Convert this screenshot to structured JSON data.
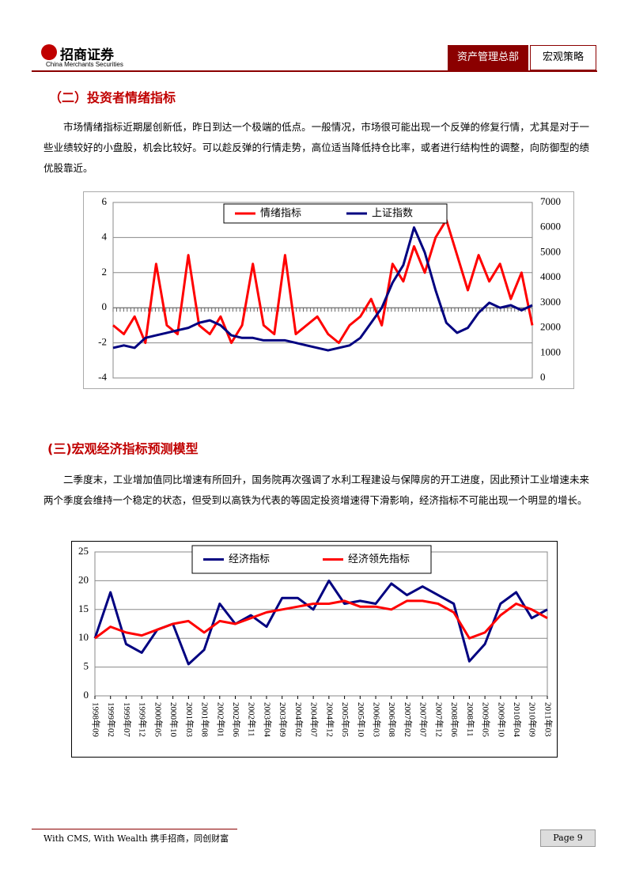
{
  "header": {
    "logo_cn": "招商证券",
    "logo_en": "China Merchants Securities",
    "tab1": "资产管理总部",
    "tab2": "宏观策略"
  },
  "sections": [
    {
      "heading": "（二）投资者情绪指标",
      "paragraph": "市场情绪指标近期屡创新低，昨日到达一个极端的低点。一般情况，市场很可能出现一个反弹的修复行情，尤其是对于一些业绩较好的小盘股，机会比较好。可以趁反弹的行情走势，高位适当降低持仓比率，或者进行结构性的调整，向防御型的绩优股靠近。"
    },
    {
      "heading": "(三)宏观经济指标预测模型",
      "paragraph": "二季度末，工业增加值同比增速有所回升，国务院再次强调了水利工程建设与保障房的开工进度，因此预计工业增速未来两个季度会维持一个稳定的状态，但受到以高铁为代表的等固定投资增速得下滑影响，经济指标不可能出现一个明显的增长。"
    }
  ],
  "chart_data": [
    {
      "type": "line",
      "grid": true,
      "ylim": [
        -4,
        6
      ],
      "yticks": [
        -4,
        -2,
        0,
        2,
        4,
        6
      ],
      "y2lim": [
        0,
        7000
      ],
      "y2ticks": [
        0,
        1000,
        2000,
        3000,
        4000,
        5000,
        6000,
        7000
      ],
      "series": [
        {
          "name": "情绪指标",
          "color": "#ff0000",
          "values": [
            -1,
            -1.5,
            -0.5,
            -2,
            2.5,
            -1,
            -1.5,
            3,
            -1,
            -1.5,
            -0.5,
            -2,
            -1,
            2.5,
            -1,
            -1.5,
            3,
            -1.5,
            -1,
            -0.5,
            -1.5,
            -2,
            -1,
            -0.5,
            0.5,
            -1,
            2.5,
            1.5,
            3.5,
            2,
            4,
            5,
            3,
            1,
            3,
            1.5,
            2.5,
            0.5,
            2,
            -1
          ]
        },
        {
          "name": "上证指数",
          "color": "#000080",
          "axis": "y2",
          "values": [
            1200,
            1300,
            1200,
            1600,
            1700,
            1800,
            1900,
            2000,
            2200,
            2300,
            2100,
            1700,
            1600,
            1600,
            1500,
            1500,
            1500,
            1400,
            1300,
            1200,
            1100,
            1200,
            1300,
            1600,
            2200,
            2800,
            3800,
            4500,
            6000,
            5000,
            3500,
            2200,
            1800,
            2000,
            2600,
            3000,
            2800,
            2900,
            2700,
            2900
          ]
        }
      ]
    },
    {
      "type": "line",
      "grid": true,
      "categories": [
        "1998年09",
        "1999年02",
        "1999年07",
        "1999年12",
        "2000年05",
        "2000年10",
        "2001年03",
        "2001年08",
        "2002年01",
        "2002年06",
        "2002年11",
        "2003年04",
        "2003年09",
        "2004年02",
        "2004年07",
        "2004年12",
        "2005年05",
        "2005年10",
        "2006年03",
        "2006年08",
        "2007年02",
        "2007年07",
        "2007年12",
        "2008年06",
        "2008年11",
        "2009年05",
        "2009年10",
        "2010年04",
        "2010年09",
        "2011年03"
      ],
      "ylim": [
        0,
        25
      ],
      "yticks": [
        0,
        5,
        10,
        15,
        20,
        25
      ],
      "series": [
        {
          "name": "经济指标",
          "color": "#000080",
          "values": [
            10,
            18,
            9,
            7.5,
            11.5,
            12.5,
            5.5,
            8,
            16,
            12.5,
            14,
            12,
            17,
            17,
            15,
            20,
            16,
            16.5,
            16,
            19.5,
            17.5,
            19,
            17.5,
            16,
            6,
            9,
            16,
            18,
            13.5,
            15
          ]
        },
        {
          "name": "经济领先指标",
          "color": "#ff0000",
          "values": [
            10,
            12,
            11,
            10.5,
            11.5,
            12.5,
            13,
            11,
            13,
            12.5,
            13.5,
            14.5,
            15,
            15.5,
            16,
            16,
            16.5,
            15.5,
            15.5,
            15,
            16.5,
            16.5,
            16,
            14.5,
            10,
            11,
            14,
            16,
            15,
            13.5
          ]
        }
      ]
    }
  ],
  "footer": {
    "slogan": "With CMS, With Wealth  携手招商，同创财富",
    "page": "Page 9"
  }
}
